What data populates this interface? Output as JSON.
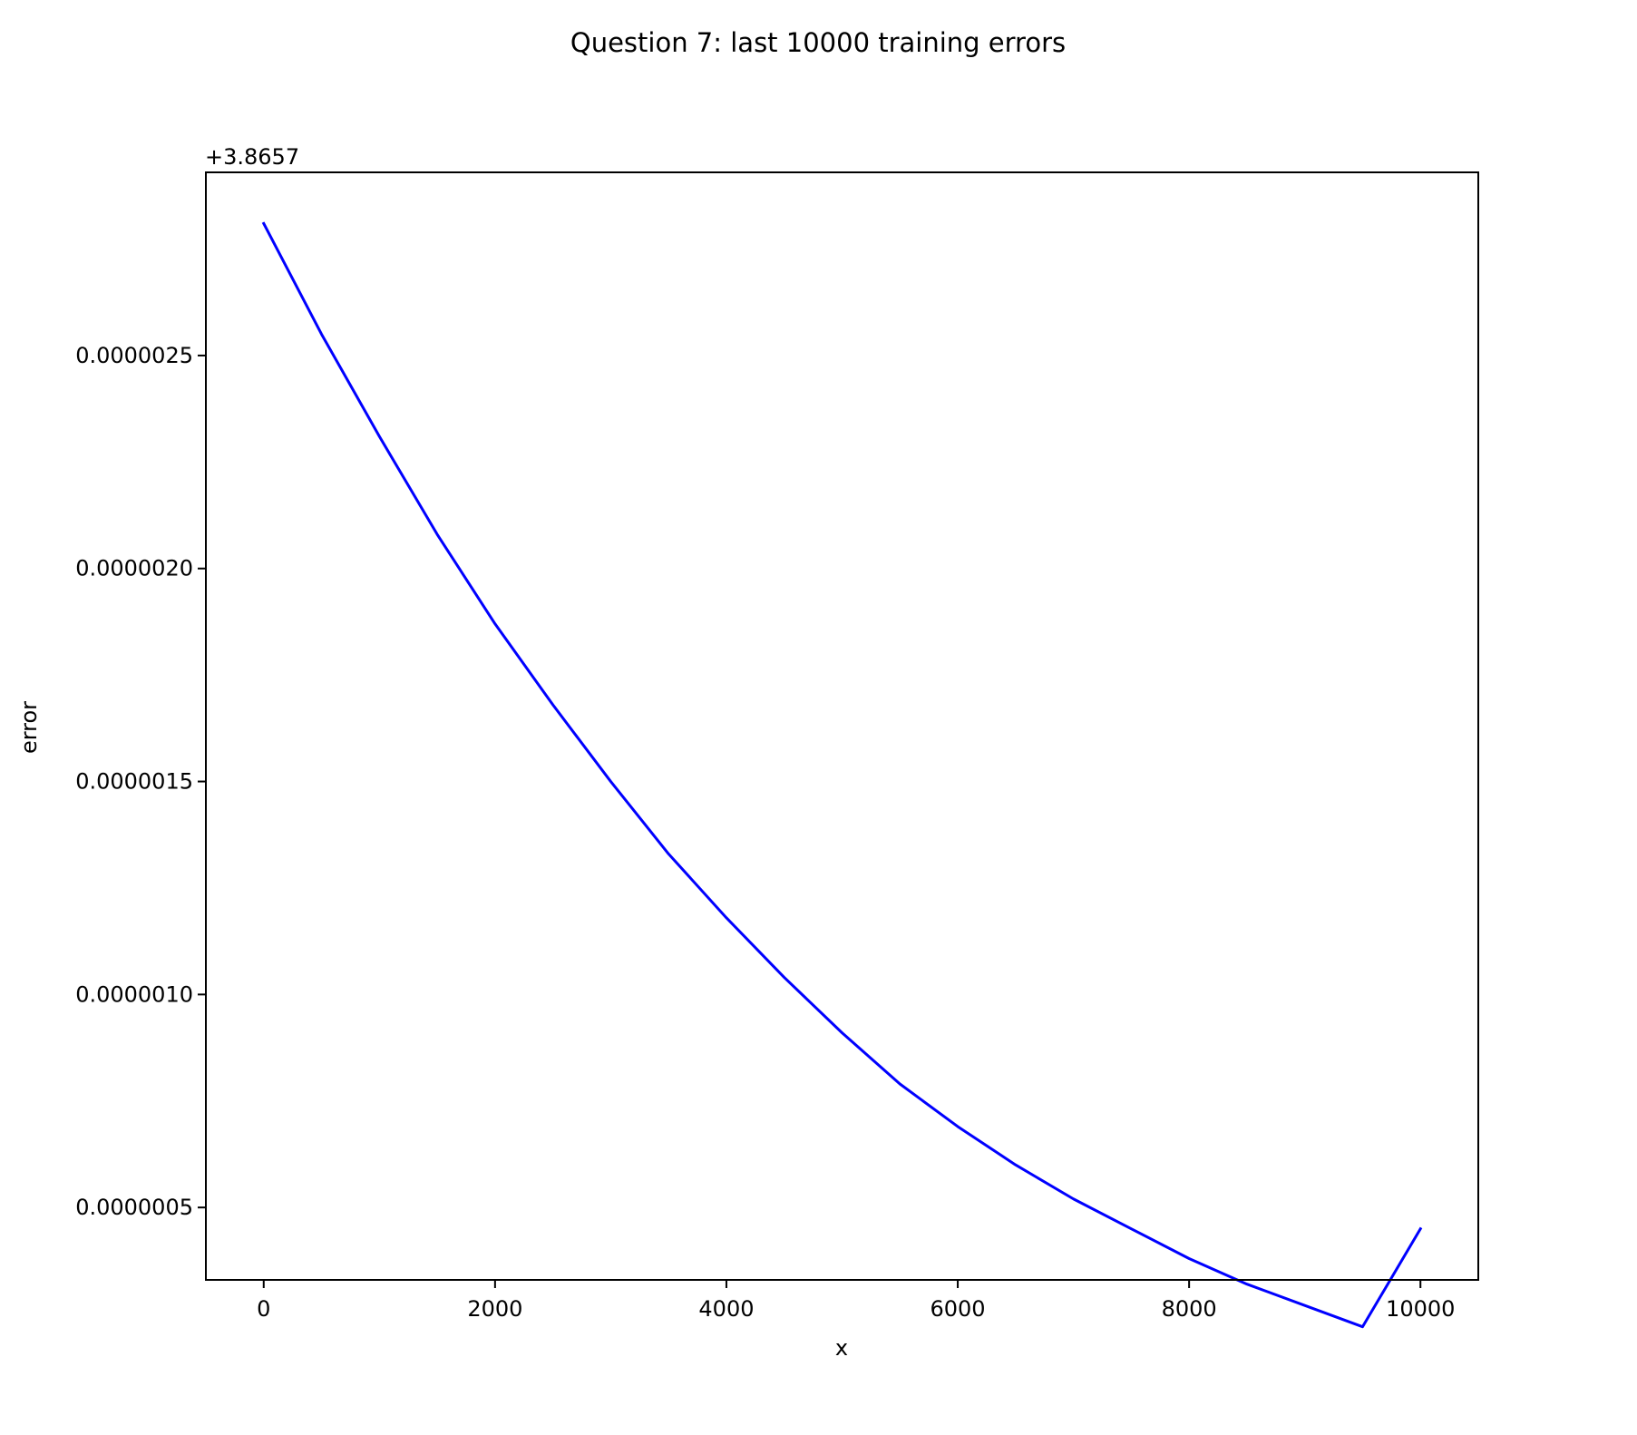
{
  "chart_data": {
    "type": "line",
    "title": "Question 7: last 10000 training errors",
    "xlabel": "x",
    "ylabel": "error",
    "offset_text": "+3.8657",
    "y_offset": 3.8657,
    "xlim": [
      -500,
      10500
    ],
    "ylim": [
      3.3e-07,
      2.93e-06
    ],
    "x_ticks": [
      0,
      2000,
      4000,
      6000,
      8000,
      10000
    ],
    "x_tick_labels": [
      "0",
      "2000",
      "4000",
      "6000",
      "8000",
      "10000"
    ],
    "y_ticks": [
      5e-07,
      1e-06,
      1.5e-06,
      2e-06,
      2.5e-06
    ],
    "y_tick_labels": [
      "0.0000005",
      "0.0000010",
      "0.0000015",
      "0.0000020",
      "0.0000025"
    ],
    "grid": false,
    "series": [
      {
        "color": "#0000ff",
        "x": [
          0,
          500,
          1000,
          1500,
          2000,
          2500,
          3000,
          3500,
          4000,
          4500,
          5000,
          5500,
          6000,
          6500,
          7000,
          7500,
          8000,
          8500,
          9000,
          9500,
          10000
        ],
        "values": [
          2.81e-06,
          2.55e-06,
          2.31e-06,
          2.08e-06,
          1.87e-06,
          1.68e-06,
          1.5e-06,
          1.33e-06,
          1.18e-06,
          1.04e-06,
          9.1e-07,
          7.9e-07,
          6.9e-07,
          6e-07,
          5.2e-07,
          4.5e-07,
          3.8e-07,
          3.2e-07,
          2.7e-07,
          2.2e-07,
          4.5e-07
        ]
      }
    ]
  }
}
